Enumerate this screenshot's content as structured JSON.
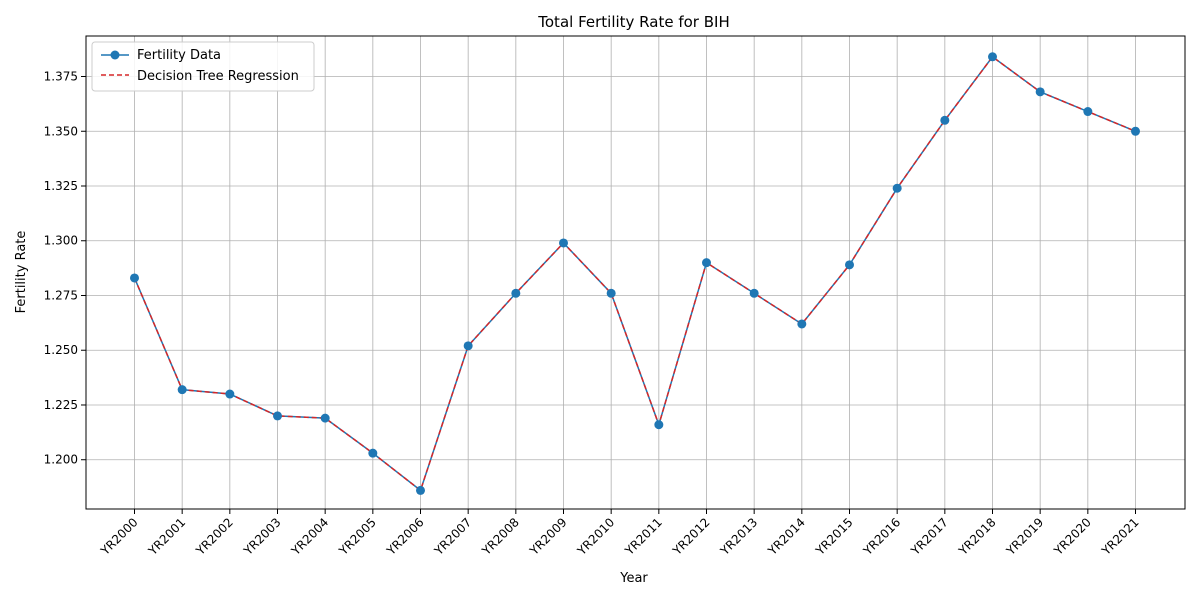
{
  "chart_data": {
    "type": "line",
    "title": "Total Fertility Rate for BIH",
    "xlabel": "Year",
    "ylabel": "Fertility Rate",
    "categories": [
      "YR2000",
      "YR2001",
      "YR2002",
      "YR2003",
      "YR2004",
      "YR2005",
      "YR2006",
      "YR2007",
      "YR2008",
      "YR2009",
      "YR2010",
      "YR2011",
      "YR2012",
      "YR2013",
      "YR2014",
      "YR2015",
      "YR2016",
      "YR2017",
      "YR2018",
      "YR2019",
      "YR2020",
      "YR2021"
    ],
    "ylim": [
      1.1775,
      1.3935
    ],
    "yticks": [
      1.2,
      1.225,
      1.25,
      1.275,
      1.3,
      1.325,
      1.35,
      1.375
    ],
    "ytick_labels": [
      "1.200",
      "1.225",
      "1.250",
      "1.275",
      "1.300",
      "1.325",
      "1.350",
      "1.375"
    ],
    "grid": true,
    "legend_position": "top-left",
    "series": [
      {
        "name": "Fertility Data",
        "style": "solid line with circle markers",
        "color": "#1f77b4",
        "values": [
          1.283,
          1.232,
          1.23,
          1.22,
          1.219,
          1.203,
          1.186,
          1.252,
          1.276,
          1.299,
          1.276,
          1.216,
          1.29,
          1.276,
          1.262,
          1.289,
          1.324,
          1.355,
          1.384,
          1.368,
          1.359,
          1.35
        ]
      },
      {
        "name": "Decision Tree Regression",
        "style": "dashed line",
        "color": "#d62728",
        "values": [
          1.283,
          1.232,
          1.23,
          1.22,
          1.219,
          1.203,
          1.186,
          1.252,
          1.276,
          1.299,
          1.276,
          1.216,
          1.29,
          1.276,
          1.262,
          1.289,
          1.324,
          1.355,
          1.384,
          1.368,
          1.359,
          1.35
        ]
      }
    ]
  }
}
